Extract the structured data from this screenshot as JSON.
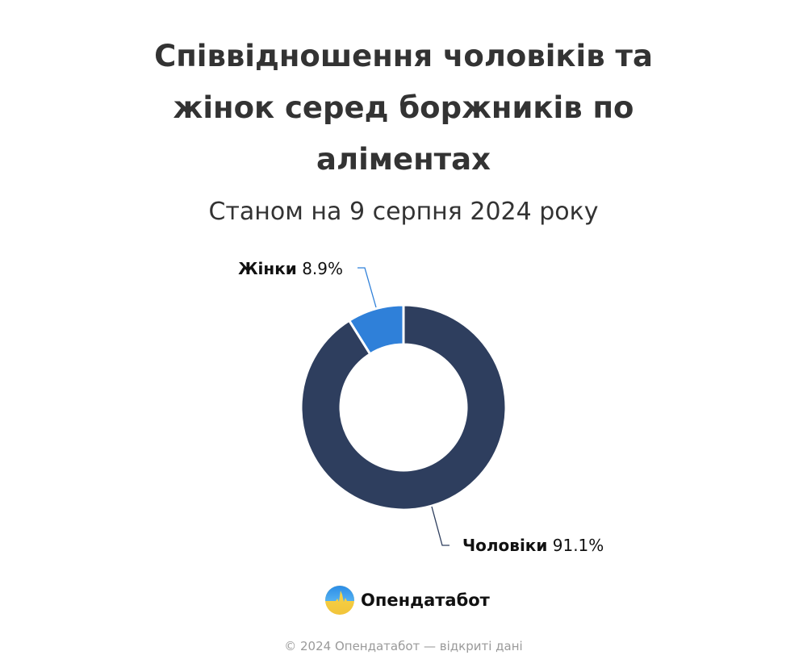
{
  "header": {
    "title_lines": [
      "Співвідношення чоловіків та",
      "жінок серед боржників по",
      "аліментах"
    ],
    "subtitle": "Станом на 9 серпня 2024 року"
  },
  "labels": {
    "women": {
      "category": "Жінки",
      "value": "8.9%"
    },
    "men": {
      "category": "Чоловіки",
      "value": "91.1%"
    }
  },
  "brand": {
    "name": "Опендатабот",
    "logo_icon": "opendatabot-logo-icon"
  },
  "footer": {
    "text": "© 2024 Опендатабот — відкриті дані"
  },
  "colors": {
    "men": "#2e3e5e",
    "women": "#2f80d9",
    "title": "#333333",
    "footer": "#9a9a9a"
  },
  "chart_data": {
    "type": "pie",
    "variant": "donut",
    "title": "Співвідношення чоловіків та жінок серед боржників по аліментах",
    "subtitle": "Станом на 9 серпня 2024 року",
    "categories": [
      "Жінки",
      "Чоловіки"
    ],
    "values": [
      8.9,
      91.1
    ],
    "unit": "%",
    "colors": [
      "#2f80d9",
      "#2e3e5e"
    ],
    "legend": "none (direct labels with leader lines)",
    "data_labels": [
      "Жінки 8.9%",
      "Чоловіки 91.1%"
    ],
    "start_angle_deg": 0,
    "direction": "women counter-clockwise from 12 o'clock, men clockwise"
  }
}
